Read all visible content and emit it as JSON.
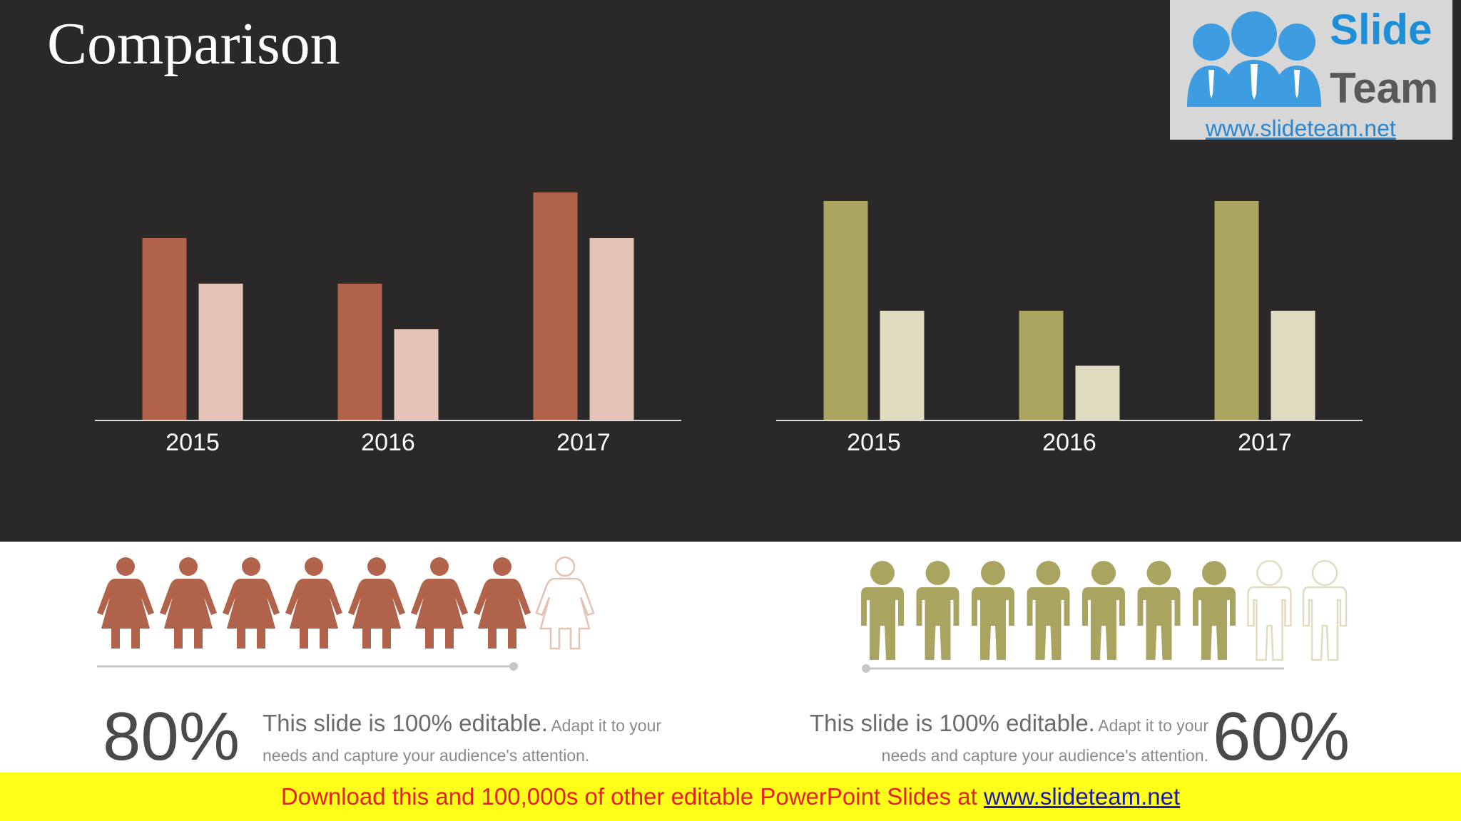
{
  "slide": {
    "title": "Comparison"
  },
  "logo": {
    "word1": "Slide",
    "word2": "Team",
    "url": "www.slideteam.net"
  },
  "colors": {
    "background_dark": "#2a2828",
    "rust": "#b0634a",
    "rust_light": "#e2c3b6",
    "olive": "#a9a460",
    "olive_light": "#e0dcc2",
    "banner_bg": "#ffff1a",
    "banner_text": "#e8201c"
  },
  "chart_data": [
    {
      "type": "bar",
      "categories": [
        "2015",
        "2016",
        "2017"
      ],
      "series": [
        {
          "values": [
            4,
            3,
            5
          ],
          "color": "#b0634a"
        },
        {
          "values": [
            3,
            2,
            4
          ],
          "color": "#e2c3b6"
        }
      ],
      "ylim": [
        0,
        5
      ],
      "grid": false,
      "legend": "none"
    },
    {
      "type": "bar",
      "categories": [
        "2015",
        "2016",
        "2017"
      ],
      "series": [
        {
          "values": [
            4,
            2,
            4
          ],
          "color": "#a9a460"
        },
        {
          "values": [
            2,
            1,
            2
          ],
          "color": "#e0dcc2"
        }
      ],
      "ylim": [
        0,
        4
      ],
      "grid": false,
      "legend": "none"
    }
  ],
  "left_panel": {
    "icon": "female-person-icon",
    "filled": 7,
    "total": 8,
    "percent": "80%",
    "desc_main": "This slide is 100% editable.",
    "desc_sub1": "Adapt it to your",
    "desc_sub2": "needs and capture your audience's attention."
  },
  "right_panel": {
    "icon": "male-person-icon",
    "filled": 7,
    "total": 9,
    "percent": "60%",
    "desc_main": "This slide is 100% editable.",
    "desc_sub1": "Adapt it to your",
    "desc_sub2": "needs and capture your audience's attention."
  },
  "banner": {
    "text": "Download this and 100,000s of other editable PowerPoint Slides at ",
    "link": "www.slideteam.net"
  }
}
